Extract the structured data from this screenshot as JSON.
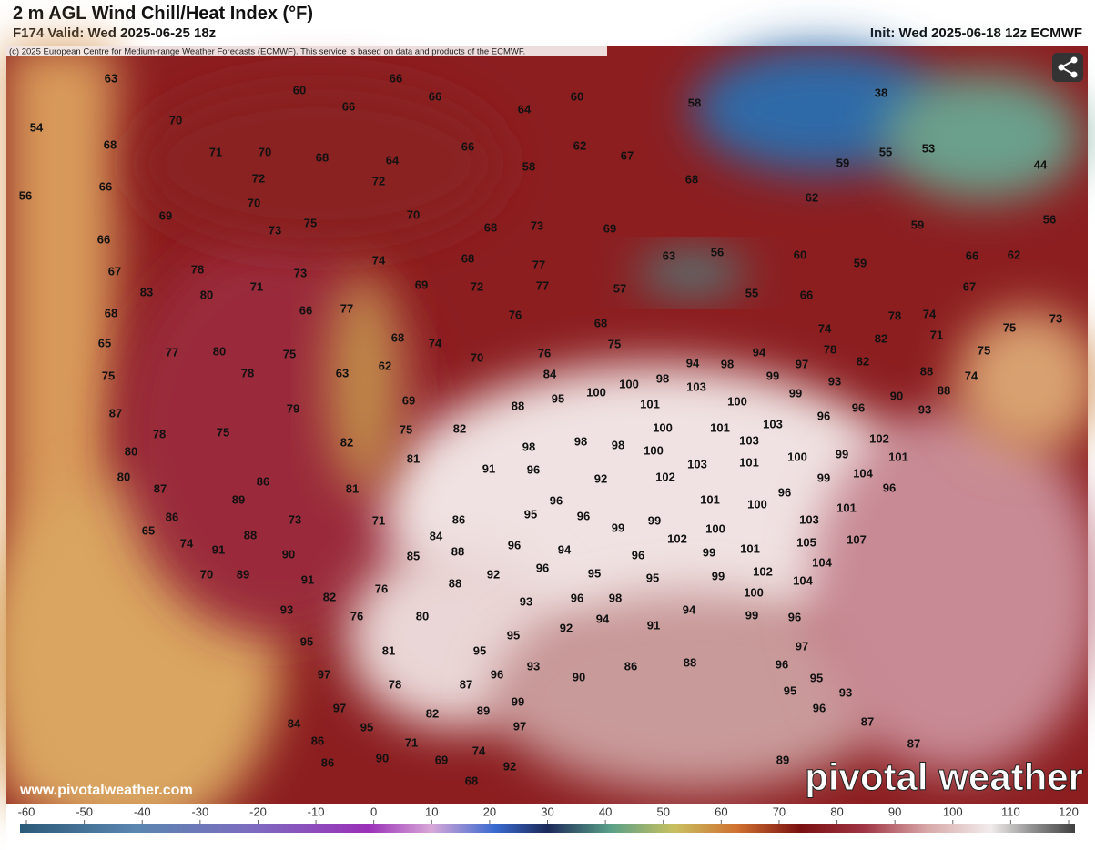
{
  "header": {
    "title": "2 m AGL Wind Chill/Heat Index (°F)",
    "valid": "F174 Valid: Wed 2025-06-25 18z",
    "init": "Init: Wed 2025-06-18 12z ECMWF"
  },
  "map": {
    "copyright": "(c) 2025 European Centre for Medium-range Weather Forecasts (ECMWF). This service is based on data and products of the ECMWF.",
    "website": "www.pivotalweather.com",
    "logo": "pivotal weather",
    "labels": [
      63,
      60,
      66,
      66,
      60,
      58,
      38,
      66,
      64,
      54,
      70,
      68,
      71,
      70,
      68,
      64,
      66,
      62,
      67,
      55,
      53,
      44,
      58,
      59,
      66,
      72,
      72,
      68,
      56,
      70,
      62,
      69,
      70,
      66,
      73,
      75,
      68,
      73,
      69,
      59,
      56,
      63,
      56,
      60,
      59,
      66,
      62,
      67,
      78,
      73,
      74,
      68,
      77,
      83,
      80,
      71,
      69,
      72,
      77,
      57,
      67,
      68,
      66,
      77,
      76,
      55,
      66,
      65,
      77,
      80,
      75,
      68,
      74,
      70,
      76,
      75,
      68,
      78,
      74,
      75,
      73,
      82,
      71,
      75,
      74,
      78,
      63,
      62,
      84,
      94,
      98,
      78,
      82,
      97,
      99,
      75,
      94,
      98,
      88,
      74,
      93,
      87,
      79,
      69,
      88,
      95,
      100,
      100,
      103,
      99,
      90,
      88,
      101,
      100,
      96,
      96,
      93,
      75,
      78,
      75,
      82,
      100,
      101,
      103,
      82,
      98,
      98,
      98,
      100,
      103,
      102,
      80,
      81,
      91,
      96,
      92,
      102,
      103,
      101,
      100,
      99,
      101,
      80,
      86,
      104,
      99,
      87,
      81,
      96,
      96,
      89,
      96,
      101,
      100,
      101,
      86,
      73,
      71,
      95,
      96,
      86,
      99,
      99,
      100,
      103,
      65,
      88,
      84,
      102,
      105,
      107,
      74,
      91,
      90,
      85,
      88,
      96,
      94,
      96,
      99,
      101,
      70,
      89,
      91,
      92,
      96,
      95,
      95,
      99,
      102,
      104,
      104,
      76,
      88,
      82,
      93,
      93,
      96,
      98,
      100,
      76,
      80,
      94,
      94,
      99,
      91,
      96,
      95,
      81,
      95,
      92,
      95,
      97,
      97,
      78,
      96,
      90,
      86,
      88,
      96,
      95,
      93,
      87,
      93,
      95,
      97,
      82,
      89,
      99,
      96,
      84,
      95,
      97,
      87,
      86,
      71,
      74,
      87,
      90,
      69,
      92,
      89,
      86,
      68
    ]
  },
  "colorbar": {
    "min": -60,
    "max": 120,
    "ticks": [
      -60,
      -50,
      -40,
      -30,
      -20,
      -10,
      0,
      10,
      20,
      30,
      40,
      50,
      60,
      70,
      80,
      90,
      100,
      110,
      120
    ]
  }
}
